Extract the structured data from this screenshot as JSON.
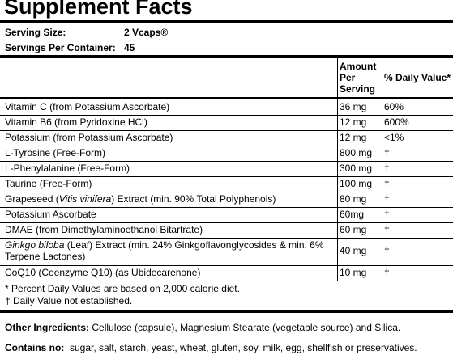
{
  "title": "Supplement Facts",
  "serving_size_label": "Serving Size:",
  "serving_size_value": "2 Vcaps®",
  "servings_label": "Servings Per Container:",
  "servings_value": "45",
  "header": {
    "amount_line1": "Amount",
    "amount_line2": "Per",
    "amount_line3": "Serving",
    "dv": "% Daily Value*"
  },
  "rows": [
    {
      "name": "Vitamin C (from Potassium Ascorbate)",
      "amount": "36 mg",
      "dv": "60%"
    },
    {
      "name": "Vitamin B6 (from Pyridoxine HCl)",
      "amount": "12 mg",
      "dv": "600%"
    },
    {
      "name": "Potassium (from Potassium Ascorbate)",
      "amount": "12 mg",
      "dv": "<1%"
    },
    {
      "name": "L-Tyrosine (Free-Form)",
      "amount": "800 mg",
      "dv": "†"
    },
    {
      "name": "L-Phenylalanine (Free-Form)",
      "amount": "300 mg",
      "dv": "†"
    },
    {
      "name": "Taurine (Free-Form)",
      "amount": "100 mg",
      "dv": "†"
    },
    {
      "name_pre": "Grapeseed (",
      "name_italic": "Vitis vinifera",
      "name_post": ") Extract (min. 90% Total Polyphenols)",
      "amount": "80 mg",
      "dv": "†"
    },
    {
      "name": "Potassium Ascorbate",
      "amount": "60mg",
      "dv": "†"
    },
    {
      "name": "DMAE (from Dimethylaminoethanol Bitartrate)",
      "amount": "60 mg",
      "dv": "†"
    },
    {
      "name_italic": "Ginkgo biloba",
      "name_post": " (Leaf) Extract (min. 24% Ginkgoflavonglycosides & min. 6%",
      "name_line2": "Terpene Lactones)",
      "amount": "40 mg",
      "dv": "†"
    },
    {
      "name": "CoQ10 (Coenzyme Q10) (as Ubidecarenone)",
      "amount": "10 mg",
      "dv": "†"
    }
  ],
  "footnote1": "* Percent Daily Values are based on 2,000 calorie diet.",
  "footnote2": "† Daily Value not established.",
  "other_label": "Other Ingredients:",
  "other_value": " Cellulose (capsule), Magnesium Stearate (vegetable source) and Silica.",
  "contains_label": "Contains no:",
  "contains_value": "  sugar, salt, starch, yeast, wheat, gluten, soy, milk, egg, shellfish or preservatives."
}
